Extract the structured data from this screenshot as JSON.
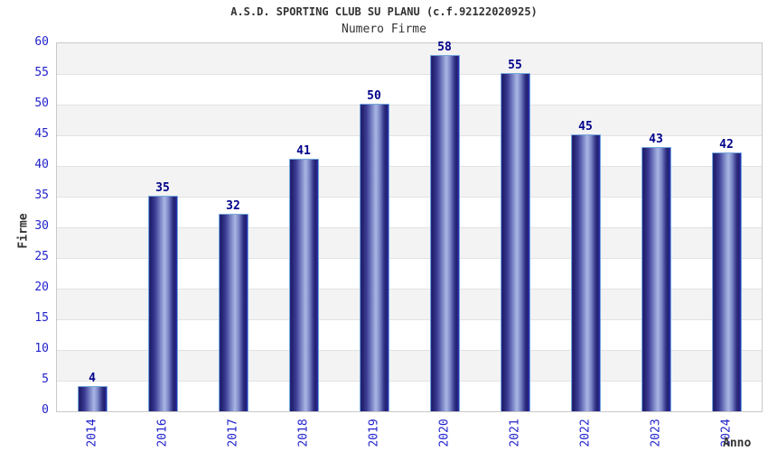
{
  "header": {
    "title": "A.S.D. SPORTING CLUB SU PLANU (c.f.92122020925)",
    "subtitle": "Numero Firme"
  },
  "axes": {
    "x_label": "Anno",
    "y_label": "Firme"
  },
  "chart_data": {
    "type": "bar",
    "title": "A.S.D. SPORTING CLUB SU PLANU (c.f.92122020925)",
    "subtitle": "Numero Firme",
    "categories": [
      "2014",
      "2016",
      "2017",
      "2018",
      "2019",
      "2020",
      "2021",
      "2022",
      "2023",
      "2024"
    ],
    "values": [
      4,
      35,
      32,
      41,
      50,
      58,
      55,
      45,
      43,
      42
    ],
    "xlabel": "Anno",
    "ylabel": "Firme",
    "ylim": [
      0,
      60
    ],
    "ytick_step": 5,
    "grid": "horizontal-bands-alternating",
    "legend": "none",
    "bar_value_labels_shown": true
  },
  "colors": {
    "text_dark": "#333333",
    "tick_label_blue": "#2222cc",
    "bar_value_navy": "#00008b",
    "band_gray": "#f3f3f3",
    "band_white": "#ffffff",
    "gridline": "#e2e2e2",
    "plot_border": "#c9c9c9",
    "bar_border_lightblue": "#74a7dc",
    "bar_dark_navy": "#1f1f6a",
    "bar_light_center": "#aab6e4"
  }
}
